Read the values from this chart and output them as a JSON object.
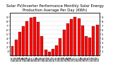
{
  "title": "Solar PV/Inverter Performance Monthly Solar Energy Production Average Per Day (KWh)",
  "categories": [
    "Jan\n'08",
    "Feb\n'08",
    "Mar\n'08",
    "Apr\n'08",
    "May\n'08",
    "Jun\n'08",
    "Jul\n'08",
    "Aug\n'08",
    "Sep\n'08",
    "Oct\n'08",
    "Nov\n'08",
    "Dec\n'08",
    "Jan\n'09",
    "Feb\n'09",
    "Mar\n'09",
    "Apr\n'09",
    "May\n'09",
    "Jun\n'09",
    "Jul\n'09",
    "Aug\n'09",
    "Sep\n'09",
    "Oct\n'09",
    "Nov\n'09",
    "Dec\n'09"
  ],
  "values": [
    2.1,
    3.6,
    5.5,
    6.8,
    8.0,
    8.8,
    9.0,
    7.8,
    4.5,
    1.4,
    0.8,
    1.5,
    2.3,
    4.0,
    6.0,
    7.5,
    8.5,
    9.0,
    8.7,
    7.0,
    4.5,
    4.2,
    6.8,
    7.2
  ],
  "bar_color": "#ff0000",
  "bar_edge_color": "#000000",
  "background_color": "#ffffff",
  "ylim": [
    0,
    10
  ],
  "yticks": [
    1,
    2,
    3,
    4,
    5,
    6,
    7,
    8,
    9
  ],
  "grid_color": "#bbbbbb",
  "title_fontsize": 3.8,
  "tick_fontsize": 2.8,
  "bar_width": 0.75
}
